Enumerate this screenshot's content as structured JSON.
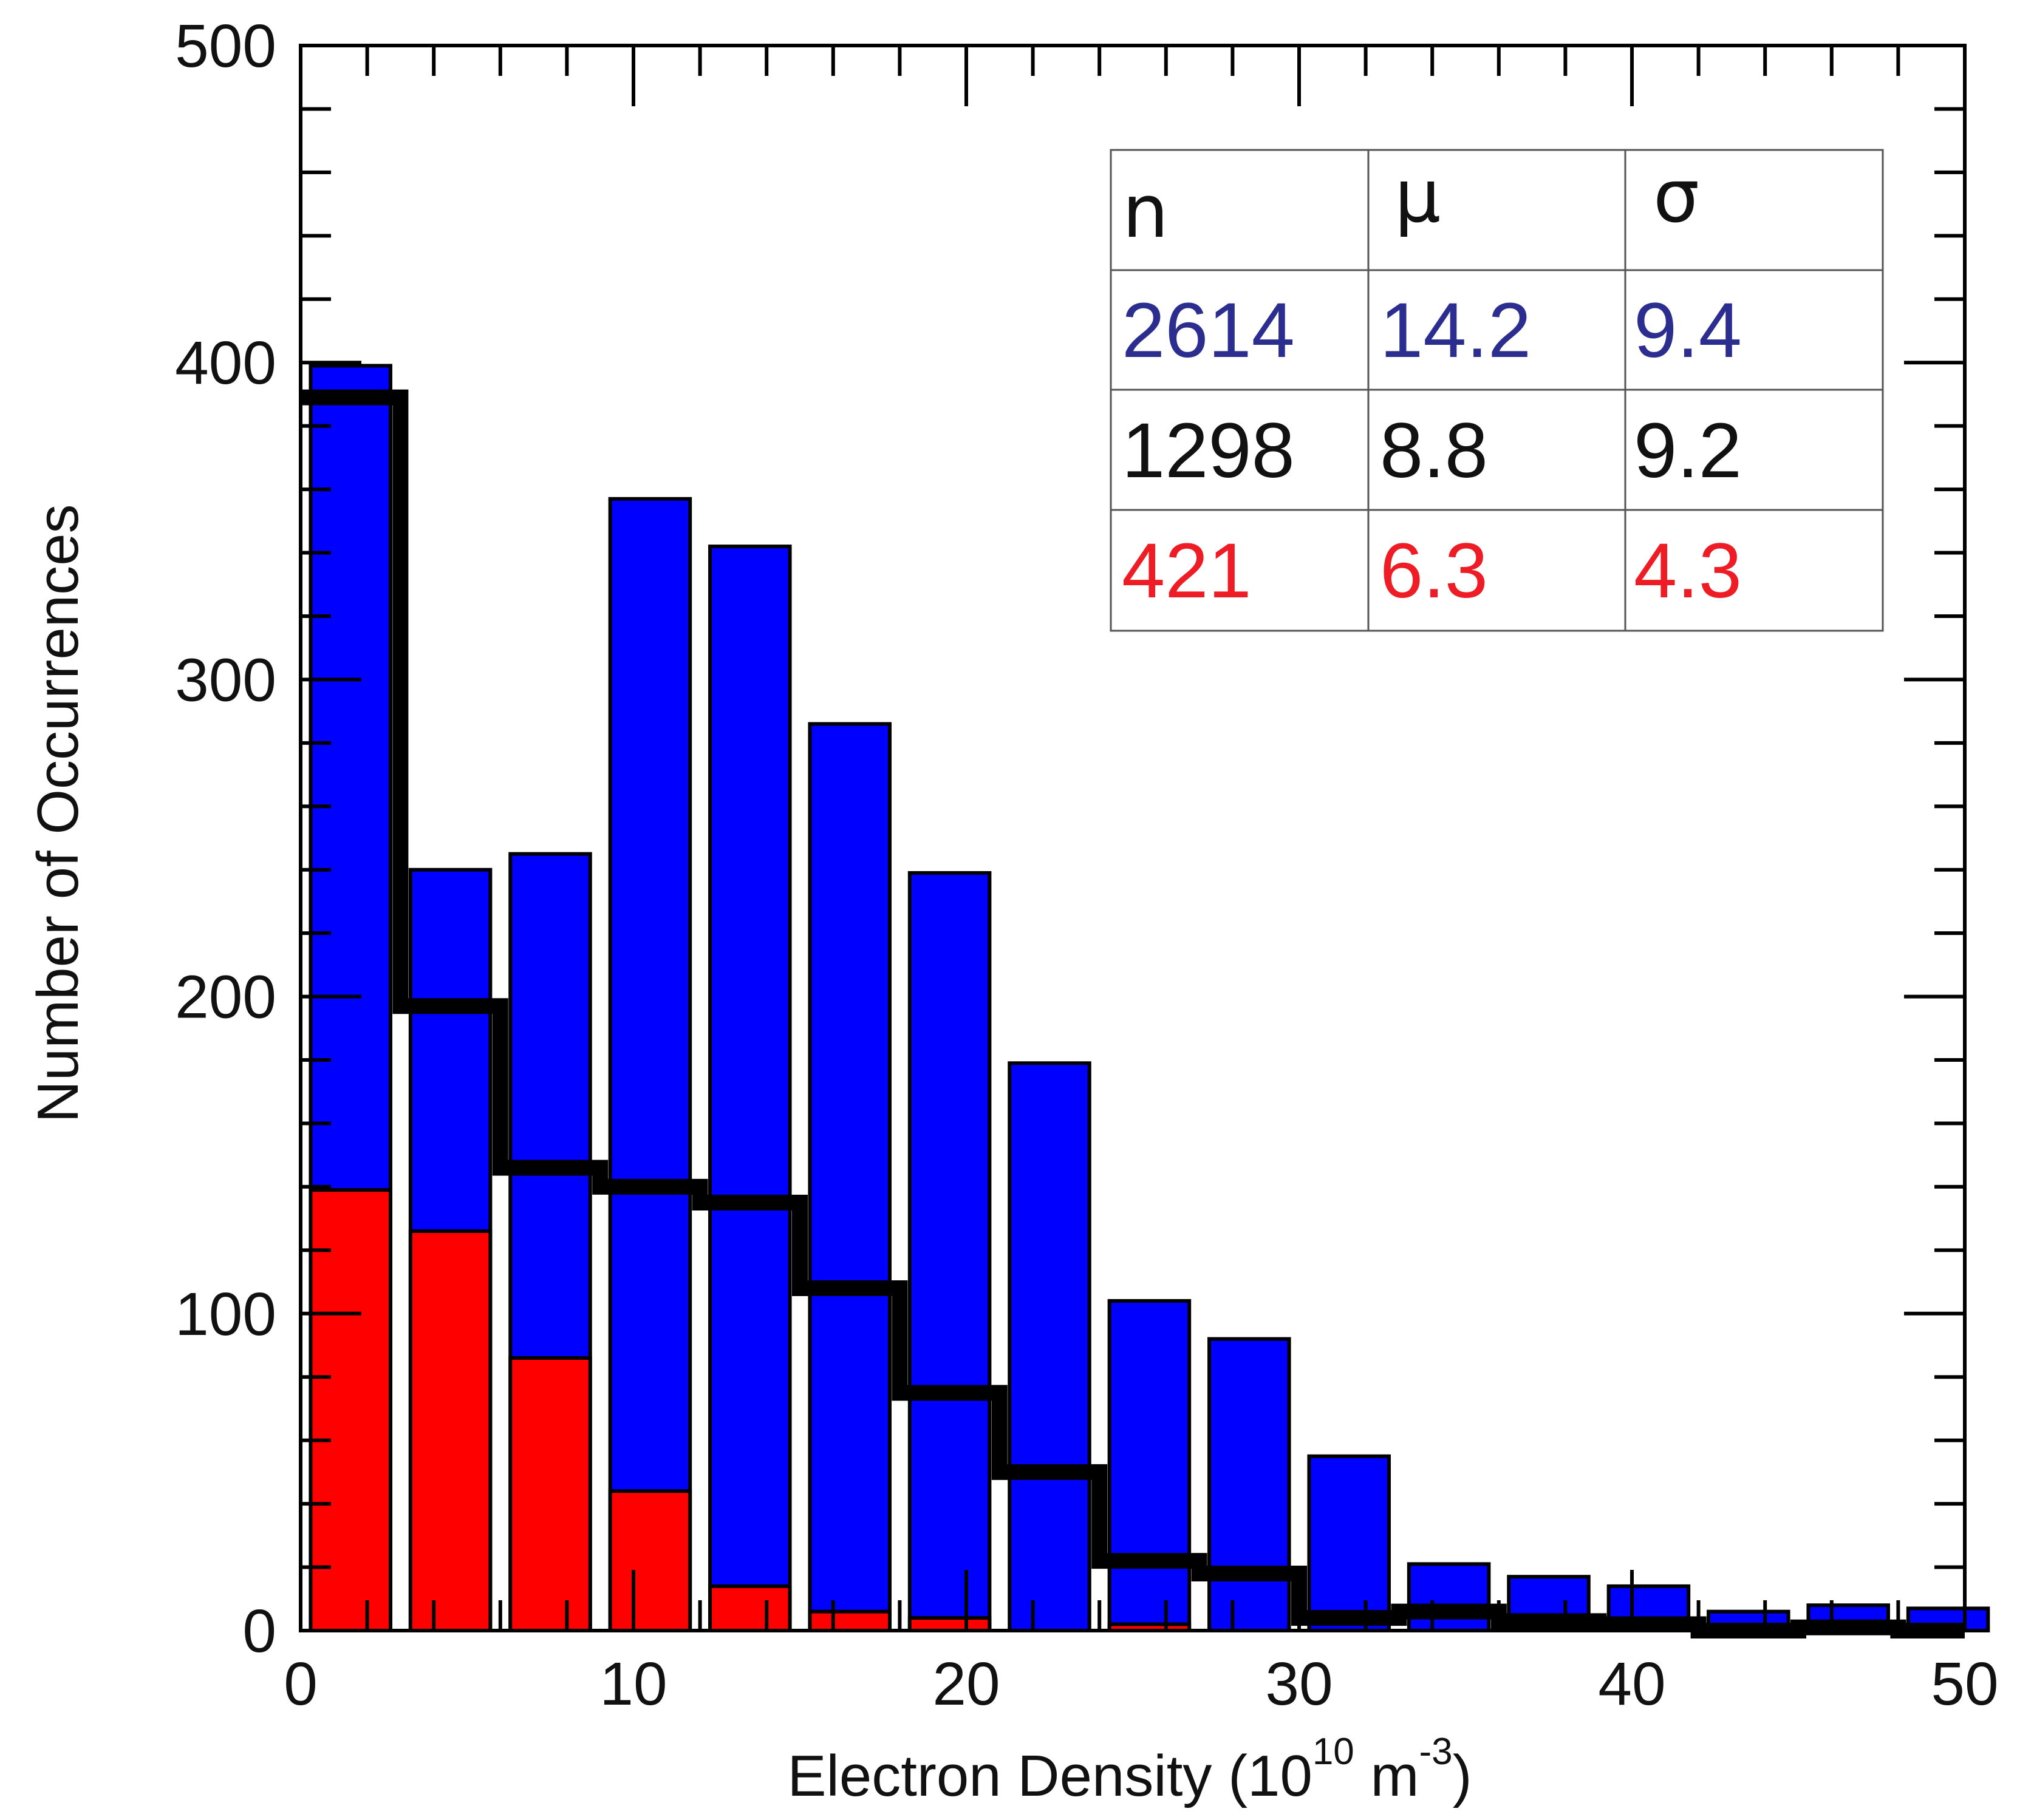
{
  "chart_data": {
    "type": "bar",
    "xlabel": "Electron Density (10",
    "xlabel_sup1": "10",
    "xlabel_mid": " m",
    "xlabel_sup2": "-3",
    "xlabel_end": ")",
    "xlabel_full": "Electron Density (10^10 m^-3)",
    "ylabel": "Number of Occurrences",
    "xlim": [
      0,
      50
    ],
    "ylim": [
      0,
      500
    ],
    "x_ticks": [
      0,
      10,
      20,
      30,
      40,
      50
    ],
    "x_tick_labels": [
      "0",
      "10",
      "20",
      "30",
      "40",
      "50"
    ],
    "y_ticks": [
      0,
      100,
      200,
      300,
      400,
      500
    ],
    "y_tick_labels": [
      "0",
      "100",
      "200",
      "300",
      "400",
      "500"
    ],
    "bin_edges_start": 0,
    "bin_width": 3,
    "series": [
      {
        "name": "all (blue bars)",
        "style": "bar",
        "color": "#0000ff",
        "bin_centers": [
          1.5,
          4.5,
          7.5,
          10.5,
          13.5,
          16.5,
          19.5,
          22.5,
          25.5,
          28.5,
          31.5,
          34.5,
          37.5,
          40.5,
          43.5,
          46.5,
          49.5
        ],
        "values": [
          399,
          240,
          245,
          357,
          342,
          286,
          239,
          179,
          104,
          92,
          55,
          21,
          17,
          14,
          6,
          8,
          7
        ]
      },
      {
        "name": "red subset",
        "style": "bar",
        "color": "#ff0000",
        "bin_centers": [
          1.5,
          4.5,
          7.5,
          10.5,
          13.5,
          16.5,
          19.5,
          22.5,
          25.5,
          28.5
        ],
        "values": [
          139,
          126,
          86,
          44,
          14,
          6,
          4,
          0,
          2,
          0
        ]
      },
      {
        "name": "black step histogram",
        "style": "step",
        "color": "#000000",
        "bin_edges": [
          0,
          3,
          6,
          9,
          12,
          15,
          18,
          21,
          24,
          27,
          30,
          33,
          36,
          39,
          42,
          45,
          48,
          50
        ],
        "values": [
          389,
          197,
          146,
          140,
          135,
          108,
          75,
          50,
          22,
          18,
          4,
          6,
          3,
          2,
          0,
          1,
          0
        ]
      }
    ],
    "stats_table": {
      "headers": [
        "n",
        "μ",
        "σ"
      ],
      "rows": [
        {
          "color": "#2b2e8f",
          "n": "2614",
          "mu": "14.2",
          "sigma": "9.4"
        },
        {
          "color": "#111111",
          "n": "1298",
          "mu": "8.8",
          "sigma": "9.2"
        },
        {
          "color": "#ee1c25",
          "n": "421",
          "mu": "6.3",
          "sigma": "4.3"
        }
      ]
    }
  }
}
